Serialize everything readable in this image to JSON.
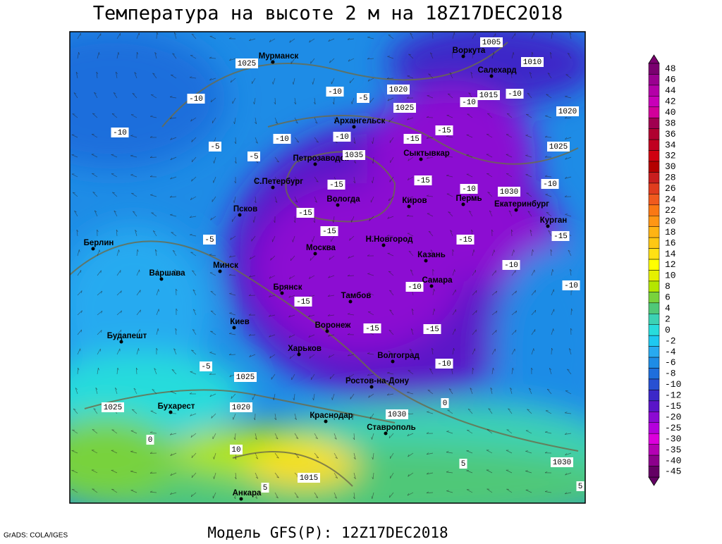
{
  "header": {
    "title": "Температура на высоте 2 м на 18Z17DEC2018"
  },
  "footer": {
    "model": "Модель GFS(P): 12Z17DEC2018",
    "credit": "GrADS: COLA/IGES"
  },
  "map": {
    "cities": [
      "Мурманск",
      "Воркута",
      "Салехард",
      "Архангельск",
      "Петрозаводск",
      "Сыктывкар",
      "С.Петербург",
      "Вологда",
      "Киров",
      "Пермь",
      "Екатеринбург",
      "Псков",
      "Курган",
      "Берлин",
      "Н.Новгород",
      "Москва",
      "Казань",
      "Варшава",
      "Минск",
      "Самара",
      "Брянск",
      "Тамбов",
      "Киев",
      "Воронеж",
      "Будапешт",
      "Харьков",
      "Волгоград",
      "Ростов-на-Дону",
      "Бухарест",
      "Краснодар",
      "Ставрополь",
      "Анкара"
    ],
    "contour_labels": [
      1025,
      1005,
      1010,
      1020,
      1015,
      1025,
      1020,
      1035,
      1030,
      1025,
      1025,
      1025,
      1020,
      1030,
      1030,
      1015,
      -10,
      -10,
      -10,
      -10,
      -15,
      -15,
      -15,
      -15,
      -10,
      -10,
      -15,
      -15,
      -15,
      -15,
      -10,
      -10,
      -10,
      -15,
      -15,
      -15,
      -10,
      -5,
      -5,
      -5,
      -5,
      0,
      0,
      10,
      5,
      5,
      5,
      -5,
      -10,
      -10,
      -10
    ]
  },
  "colorbar": {
    "items": [
      {
        "value": 48,
        "color": "#7a0070"
      },
      {
        "value": 46,
        "color": "#9a0090"
      },
      {
        "value": 44,
        "color": "#b400a8"
      },
      {
        "value": 42,
        "color": "#c800b8"
      },
      {
        "value": 40,
        "color": "#d2009a"
      },
      {
        "value": 38,
        "color": "#a00050"
      },
      {
        "value": 36,
        "color": "#b00030"
      },
      {
        "value": 34,
        "color": "#c00020"
      },
      {
        "value": 32,
        "color": "#d00010"
      },
      {
        "value": 30,
        "color": "#b40000"
      },
      {
        "value": 28,
        "color": "#c81e1e"
      },
      {
        "value": 26,
        "color": "#e03c1e"
      },
      {
        "value": 24,
        "color": "#f05a1e"
      },
      {
        "value": 22,
        "color": "#fa7814"
      },
      {
        "value": 20,
        "color": "#ff9614"
      },
      {
        "value": 18,
        "color": "#ffb414"
      },
      {
        "value": 16,
        "color": "#ffc814"
      },
      {
        "value": 14,
        "color": "#ffe014"
      },
      {
        "value": 12,
        "color": "#ffff00"
      },
      {
        "value": 10,
        "color": "#e6f000"
      },
      {
        "value": 8,
        "color": "#b4e600"
      },
      {
        "value": 6,
        "color": "#78d23c"
      },
      {
        "value": 4,
        "color": "#50c878"
      },
      {
        "value": 2,
        "color": "#3cd2b4"
      },
      {
        "value": 0,
        "color": "#28dcdc"
      },
      {
        "value": -2,
        "color": "#1ec8f0"
      },
      {
        "value": -4,
        "color": "#28aaf0"
      },
      {
        "value": -6,
        "color": "#1e8ce6"
      },
      {
        "value": -8,
        "color": "#1e6edc"
      },
      {
        "value": -10,
        "color": "#2850d2"
      },
      {
        "value": -12,
        "color": "#3c28c8"
      },
      {
        "value": -15,
        "color": "#5a14c8"
      },
      {
        "value": -20,
        "color": "#8c0ad2"
      },
      {
        "value": -25,
        "color": "#b400dc"
      },
      {
        "value": -30,
        "color": "#dc00dc"
      },
      {
        "value": -35,
        "color": "#b400b4"
      },
      {
        "value": -40,
        "color": "#8c008c"
      },
      {
        "value": -45,
        "color": "#640064"
      }
    ]
  }
}
